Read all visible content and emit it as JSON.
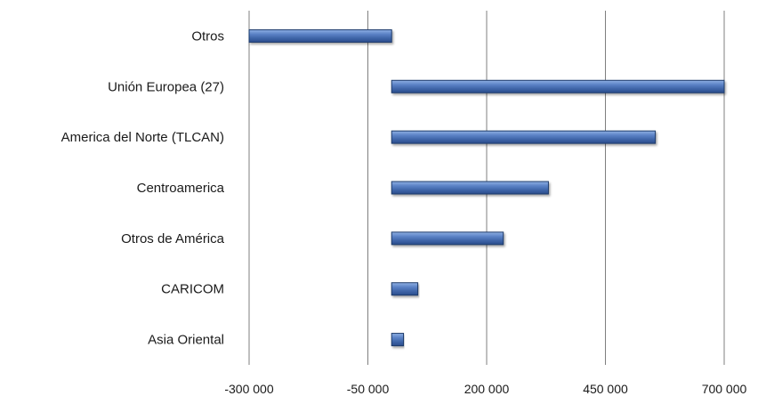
{
  "chart_data": {
    "type": "bar",
    "orientation": "horizontal",
    "title": "",
    "xlabel": "",
    "ylabel": "",
    "categories": [
      "Otros",
      "Unión Europea (27)",
      "America del Norte (TLCAN)",
      "Centroamerica",
      "Otros de América",
      "CARICOM",
      "Asia Oriental"
    ],
    "values": [
      -300000,
      700000,
      555000,
      330000,
      235000,
      55000,
      25000
    ],
    "xlim": [
      -300000,
      700000
    ],
    "ticks": [
      -300000,
      -50000,
      200000,
      450000,
      700000
    ],
    "tick_labels": [
      "-300 000",
      "-50 000",
      "200 000",
      "450 000",
      "700 000"
    ],
    "grid": "vertical",
    "legend": "none",
    "bar_color": "#4a70b2",
    "bar_edge_color": "#1f3a6b",
    "grid_color": "#7f7f7f"
  }
}
